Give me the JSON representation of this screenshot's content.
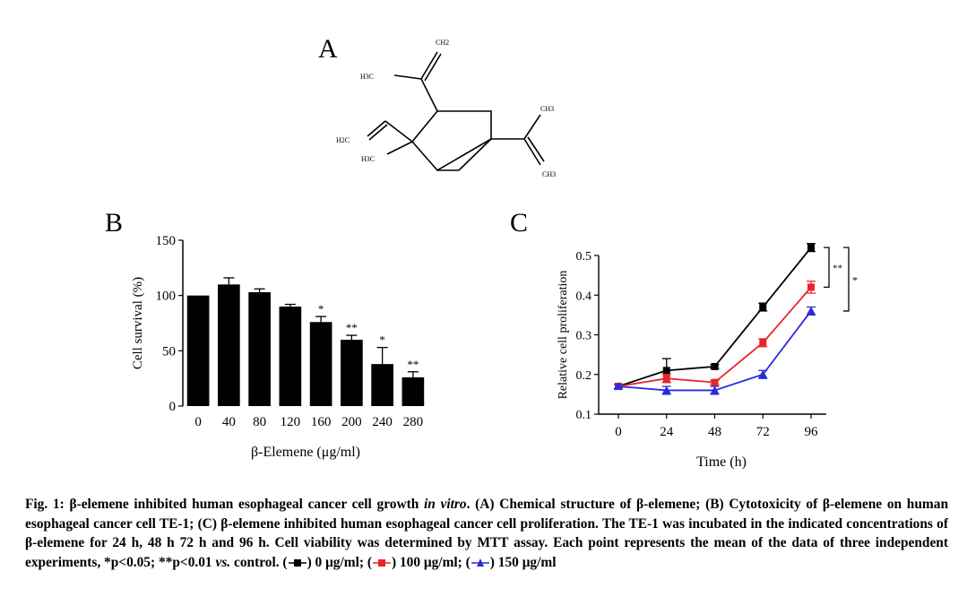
{
  "panel_a": {
    "label": "A",
    "atoms": [
      "CH2",
      "H3C",
      "CH3",
      "H2C",
      "H3C",
      "CH3"
    ]
  },
  "panel_b": {
    "label": "B"
  },
  "panel_c": {
    "label": "C"
  },
  "chart_data": [
    {
      "type": "bar",
      "title": "",
      "xlabel": "β-Elemene (μg/ml)",
      "ylabel": "Cell survival (%)",
      "categories": [
        "0",
        "40",
        "80",
        "120",
        "160",
        "200",
        "240",
        "280"
      ],
      "values": [
        100,
        110,
        103,
        90,
        76,
        60,
        38,
        26
      ],
      "errors": [
        0,
        6,
        3,
        2,
        5,
        4,
        15,
        5
      ],
      "significance": [
        "",
        "",
        "",
        "",
        "*",
        "**",
        "*",
        "**"
      ],
      "ylim": [
        0,
        150
      ],
      "yticks": [
        "0",
        "50",
        "100",
        "150"
      ],
      "color": "#000000"
    },
    {
      "type": "line",
      "title": "",
      "xlabel": "Time (h)",
      "ylabel": "Relative cell proliferation",
      "x": [
        0,
        24,
        48,
        72,
        96
      ],
      "xticks": [
        "0",
        "24",
        "48",
        "72",
        "96"
      ],
      "ylim": [
        0.1,
        0.5
      ],
      "yticks": [
        "0.1",
        "0.2",
        "0.3",
        "0.4",
        "0.5"
      ],
      "series": [
        {
          "color": "#000000",
          "values": [
            0.17,
            0.21,
            0.22,
            0.37,
            0.52
          ],
          "errors": [
            0.005,
            0.03,
            0.005,
            0.01,
            0.01
          ]
        },
        {
          "color": "#e8262a",
          "values": [
            0.17,
            0.19,
            0.18,
            0.28,
            0.42
          ],
          "errors": [
            0.005,
            0.01,
            0.005,
            0.01,
            0.015
          ]
        },
        {
          "color": "#2b2bd9",
          "values": [
            0.17,
            0.16,
            0.16,
            0.2,
            0.36
          ],
          "errors": [
            0.005,
            0.01,
            0.01,
            0.01,
            0.01
          ]
        }
      ],
      "significance": [
        "**",
        "*"
      ]
    }
  ],
  "caption": {
    "fig": "Fig. 1:",
    "part1": " β-elemene inhibited human esophageal cancer cell growth ",
    "italic1": "in vitro",
    "part2": ". (A) Chemical structure of β-elemene; (B) Cytotoxicity of β-elemene on human esophageal cancer cell TE-1; (C) β-elemene inhibited human esophageal cancer cell proliferation. The TE-1 was incubated in the indicated concentrations of β-elemene for 24 h, 48 h 72 h and 96 h. Cell viability was determined by MTT assay. Each point represents the mean of the data of three independent experiments, *p<0.05; **p<0.01 ",
    "italic2": "vs.",
    "part3": " control. (",
    "leg1": ") 0 μg/ml; (",
    "leg2": ") 100 μg/ml; (",
    "leg3": ") 150 μg/ml"
  }
}
